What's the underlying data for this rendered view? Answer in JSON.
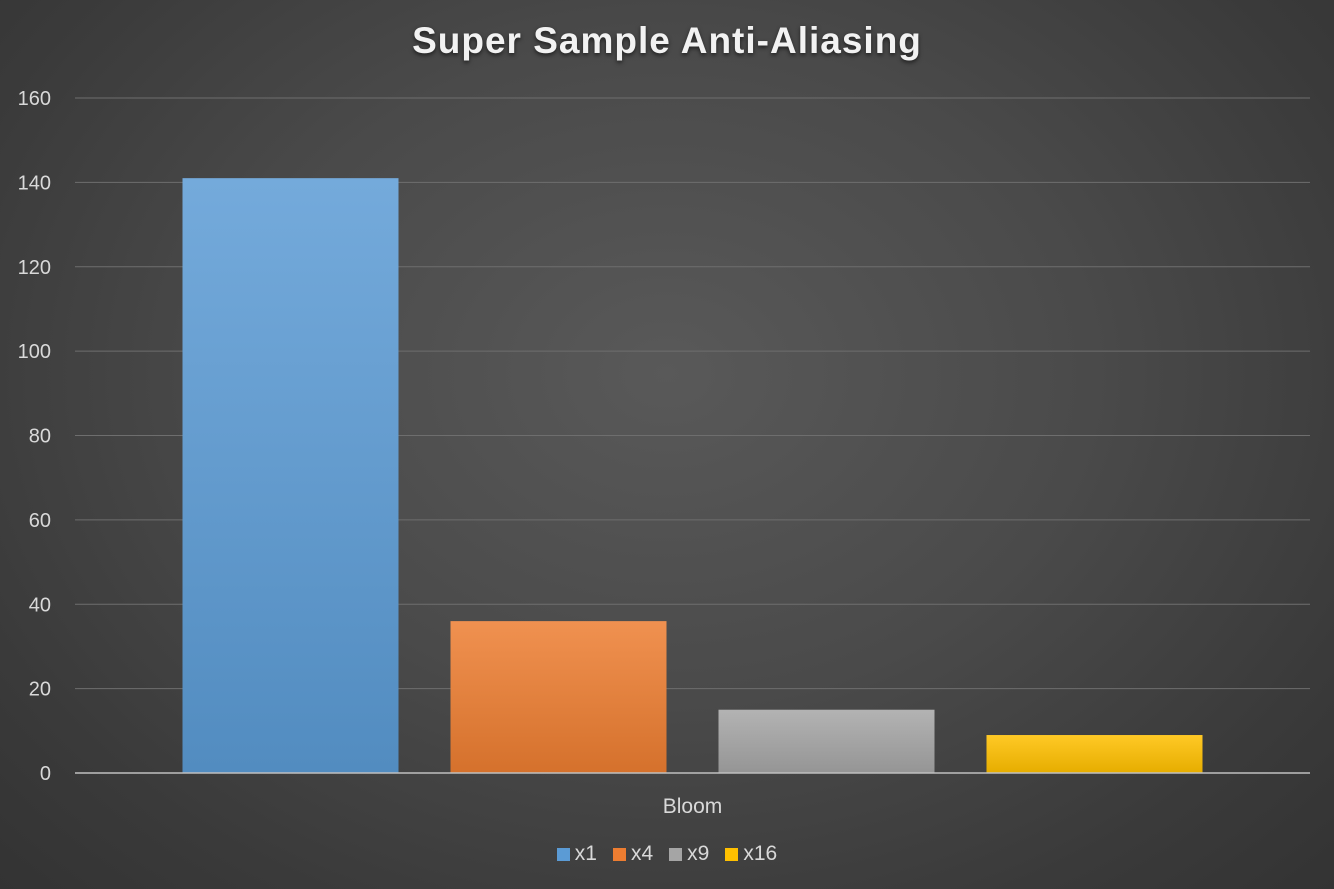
{
  "chart_data": {
    "type": "bar",
    "title": "Super Sample Anti-Aliasing",
    "categories": [
      "Bloom"
    ],
    "series": [
      {
        "name": "x1",
        "values": [
          141
        ],
        "color": "#5b9bd5"
      },
      {
        "name": "x4",
        "values": [
          36
        ],
        "color": "#ed7d31"
      },
      {
        "name": "x9",
        "values": [
          15
        ],
        "color": "#a5a5a5"
      },
      {
        "name": "x16",
        "values": [
          9
        ],
        "color": "#ffc000"
      }
    ],
    "xlabel": "",
    "ylabel": "",
    "ylim": [
      0,
      160
    ],
    "yticks": [
      "0",
      "20",
      "40",
      "60",
      "80",
      "100",
      "120",
      "140",
      "160"
    ],
    "grid": true,
    "legend_position": "bottom"
  }
}
